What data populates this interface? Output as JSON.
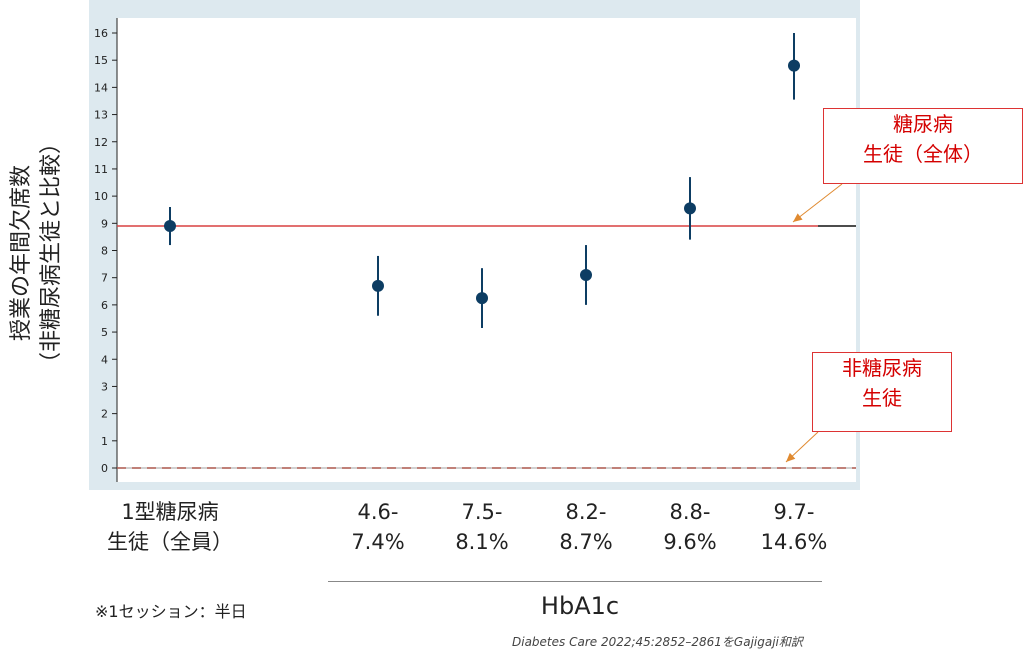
{
  "chart_data": {
    "type": "scatter",
    "ylabel": "授業の年間欠席数\n（非糖尿病生徒と比較）",
    "xlabel": "HbA1c",
    "ylim": [
      0,
      16
    ],
    "yticks": [
      0,
      1,
      2,
      3,
      4,
      5,
      6,
      7,
      8,
      9,
      10,
      11,
      12,
      13,
      14,
      15,
      16
    ],
    "grid": false,
    "categories": [
      "1型糖尿病\n生徒（全員）",
      "4.6-\n7.4%",
      "7.5-\n8.1%",
      "8.2-\n8.7%",
      "8.8-\n9.6%",
      "9.7-\n14.6%"
    ],
    "points": [
      {
        "category": "1型糖尿病\n生徒（全員）",
        "y": 8.9,
        "low": 8.2,
        "high": 9.6
      },
      {
        "category": "4.6-\n7.4%",
        "y": 6.7,
        "low": 5.6,
        "high": 7.8
      },
      {
        "category": "7.5-\n8.1%",
        "y": 6.25,
        "low": 5.15,
        "high": 7.35
      },
      {
        "category": "8.2-\n8.7%",
        "y": 7.1,
        "low": 6.0,
        "high": 8.2
      },
      {
        "category": "8.8-\n9.6%",
        "y": 9.55,
        "low": 8.4,
        "high": 10.7
      },
      {
        "category": "9.7-\n14.6%",
        "y": 14.8,
        "low": 13.55,
        "high": 16.0
      }
    ],
    "reference_lines": [
      {
        "label": "糖尿病\n生徒（全体）",
        "y": 8.9,
        "style": "solid",
        "color": "#d94040"
      },
      {
        "label": "非糖尿病\n生徒",
        "y": 0,
        "style": "dashed",
        "color": "#e06050"
      }
    ],
    "colors": {
      "marker": "#0d3d63",
      "background": "#dde9ef",
      "plot": "#ffffff"
    }
  },
  "footnote": "※1セッション：半日",
  "source": "Diabetes Care 2022;45:2852–2861をGajigaji和訳"
}
